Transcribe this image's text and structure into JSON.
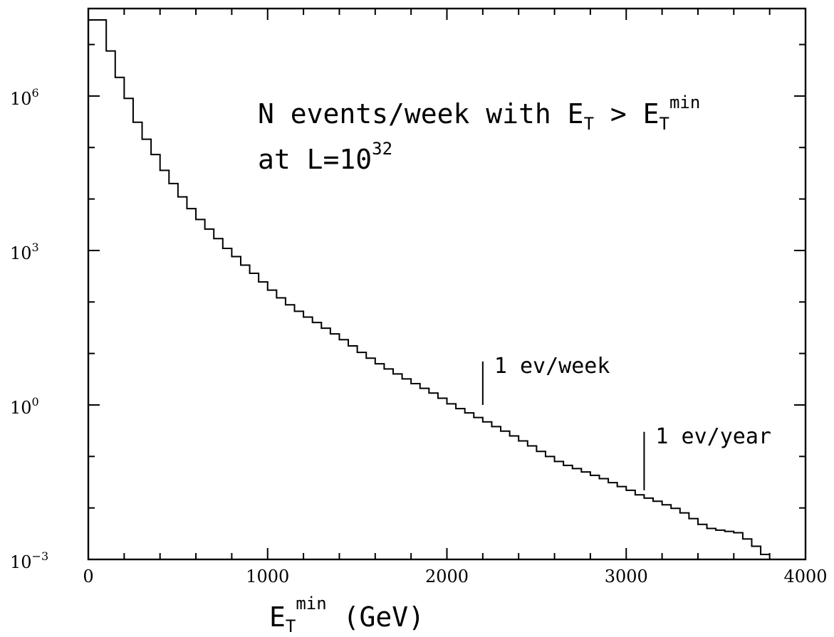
{
  "chart_data": {
    "type": "line",
    "step": true,
    "scale": {
      "x": "linear",
      "y": "log"
    },
    "title": {
      "line1": {
        "base": "N events/week with E",
        "sub": "T",
        "mid": " > E",
        "sub2": "T",
        "sup": "min"
      },
      "line2": {
        "base": "at L=10",
        "sup": "32"
      }
    },
    "xlabel": {
      "base": "E",
      "sub": "T",
      "sup": "min",
      "units": " (GeV)"
    },
    "ylabel": "",
    "xlim": [
      0,
      4000
    ],
    "ylim": [
      0.001,
      50000000
    ],
    "x_ticks": [
      {
        "value": 0,
        "label": "0"
      },
      {
        "value": 1000,
        "label": "1000"
      },
      {
        "value": 2000,
        "label": "2000"
      },
      {
        "value": 3000,
        "label": "3000"
      },
      {
        "value": 4000,
        "label": "4000"
      }
    ],
    "y_ticks": [
      {
        "value": 1000000,
        "base": "10",
        "exp": "6"
      },
      {
        "value": 1000,
        "base": "10",
        "exp": "3"
      },
      {
        "value": 1,
        "base": "10",
        "exp": "0"
      },
      {
        "value": 0.001,
        "base": "10",
        "exp": "−3"
      }
    ],
    "bin_width": 50,
    "series": [
      {
        "x": [
          0,
          50,
          100,
          150,
          200,
          250,
          300,
          350,
          400,
          450,
          500,
          550,
          600,
          650,
          700,
          750,
          800,
          850,
          900,
          950,
          1000,
          1050,
          1100,
          1150,
          1200,
          1250,
          1300,
          1350,
          1400,
          1450,
          1500,
          1550,
          1600,
          1650,
          1700,
          1750,
          1800,
          1850,
          1900,
          1950,
          2000,
          2050,
          2100,
          2150,
          2200,
          2250,
          2300,
          2350,
          2400,
          2450,
          2500,
          2550,
          2600,
          2650,
          2700,
          2750,
          2800,
          2850,
          2900,
          2950,
          3000,
          3050,
          3100,
          3150,
          3200,
          3250,
          3300,
          3350,
          3400,
          3450,
          3500,
          3550,
          3600,
          3650,
          3700,
          3750
        ],
        "y": [
          30000000,
          30000000,
          7500000,
          2300000,
          900000,
          310000,
          145000,
          73000,
          36000,
          20000,
          11000,
          6500,
          4000,
          2600,
          1700,
          1100,
          760,
          520,
          360,
          245,
          170,
          120,
          88,
          66,
          51,
          40,
          31,
          24,
          18.5,
          14,
          10.5,
          8.1,
          6.3,
          5.0,
          4.0,
          3.2,
          2.6,
          2.1,
          1.7,
          1.35,
          1.05,
          0.85,
          0.7,
          0.57,
          0.47,
          0.38,
          0.31,
          0.25,
          0.2,
          0.16,
          0.125,
          0.1,
          0.08,
          0.067,
          0.058,
          0.05,
          0.043,
          0.037,
          0.031,
          0.026,
          0.022,
          0.018,
          0.0155,
          0.0135,
          0.0115,
          0.0098,
          0.008,
          0.0062,
          0.0048,
          0.004,
          0.0037,
          0.0035,
          0.0033,
          0.0025,
          0.0018,
          0.00125
        ]
      }
    ],
    "annotations": [
      {
        "text": "1 ev/week",
        "x": 2200,
        "y_from": 1,
        "y_to": 7
      },
      {
        "text": "1 ev/year",
        "x": 3100,
        "y_from": 0.022,
        "y_to": 0.3
      }
    ]
  }
}
